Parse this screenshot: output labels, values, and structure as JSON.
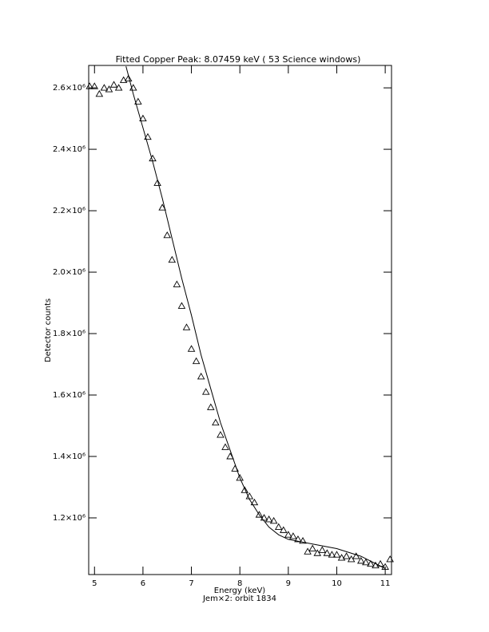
{
  "chart_data": {
    "type": "scatter",
    "title": "Fitted Copper Peak:      8.07459 keV (      53 Science windows)",
    "x_label": "Energy (keV)",
    "subtitle": "Jem×2: orbit 1834",
    "y_label": "Detector counts",
    "xlim": [
      4.88,
      11.13
    ],
    "ylim": [
      1015500,
      2673000
    ],
    "xticks": [
      5,
      6,
      7,
      8,
      9,
      10,
      11
    ],
    "yticks": [
      {
        "value": 1200000,
        "label": "1.2×10⁶"
      },
      {
        "value": 1400000,
        "label": "1.4×10⁶"
      },
      {
        "value": 1600000,
        "label": "1.6×10⁶"
      },
      {
        "value": 1800000,
        "label": "1.8×10⁶"
      },
      {
        "value": 2000000,
        "label": "2.0×10⁶"
      },
      {
        "value": 2200000,
        "label": "2.2×10⁶"
      },
      {
        "value": 2400000,
        "label": "2.4×10⁶"
      },
      {
        "value": 2600000,
        "label": "2.6×10⁶"
      }
    ],
    "series": [
      {
        "kind": "points",
        "color": "#000000",
        "x": [
          4.9,
          5.0,
          5.1,
          5.2,
          5.3,
          5.4,
          5.5,
          5.6,
          5.7,
          5.8,
          5.9,
          6.0,
          6.1,
          6.2,
          6.3,
          6.4,
          6.5,
          6.6,
          6.7,
          6.8,
          6.9,
          7.0,
          7.1,
          7.2,
          7.3,
          7.4,
          7.5,
          7.6,
          7.7,
          7.8,
          7.9,
          8.0,
          8.1,
          8.2,
          8.3,
          8.4,
          8.5,
          8.6,
          8.7,
          8.8,
          8.9,
          9.0,
          9.1,
          9.2,
          9.3,
          9.4,
          9.5,
          9.6,
          9.7,
          9.8,
          9.9,
          10.0,
          10.1,
          10.2,
          10.3,
          10.4,
          10.5,
          10.6,
          10.7,
          10.8,
          10.9,
          11.0,
          11.1
        ],
        "values": [
          2605000,
          2605000,
          2580000,
          2600000,
          2595000,
          2610000,
          2600000,
          2625000,
          2630000,
          2600000,
          2555000,
          2500000,
          2440000,
          2370000,
          2290000,
          2210000,
          2120000,
          2040000,
          1960000,
          1890000,
          1820000,
          1750000,
          1710000,
          1660000,
          1610000,
          1560000,
          1510000,
          1470000,
          1430000,
          1400000,
          1360000,
          1330000,
          1290000,
          1270000,
          1250000,
          1210000,
          1200000,
          1195000,
          1190000,
          1170000,
          1160000,
          1145000,
          1140000,
          1130000,
          1125000,
          1090000,
          1100000,
          1085000,
          1095000,
          1085000,
          1080000,
          1080000,
          1070000,
          1075000,
          1065000,
          1075000,
          1060000,
          1055000,
          1050000,
          1045000,
          1050000,
          1040000,
          1065000
        ]
      },
      {
        "kind": "line",
        "color": "#000000",
        "x": [
          5.65,
          5.8,
          6.0,
          6.2,
          6.4,
          6.6,
          6.8,
          7.0,
          7.2,
          7.4,
          7.6,
          7.8,
          8.0,
          8.2,
          8.4,
          8.6,
          8.8,
          9.0,
          9.5,
          10.0,
          10.5,
          11.0
        ],
        "values": [
          2670000,
          2580000,
          2470000,
          2360000,
          2240000,
          2110000,
          1980000,
          1860000,
          1730000,
          1620000,
          1510000,
          1420000,
          1330000,
          1260000,
          1210000,
          1170000,
          1145000,
          1130000,
          1115000,
          1100000,
          1075000,
          1035000
        ]
      }
    ]
  }
}
